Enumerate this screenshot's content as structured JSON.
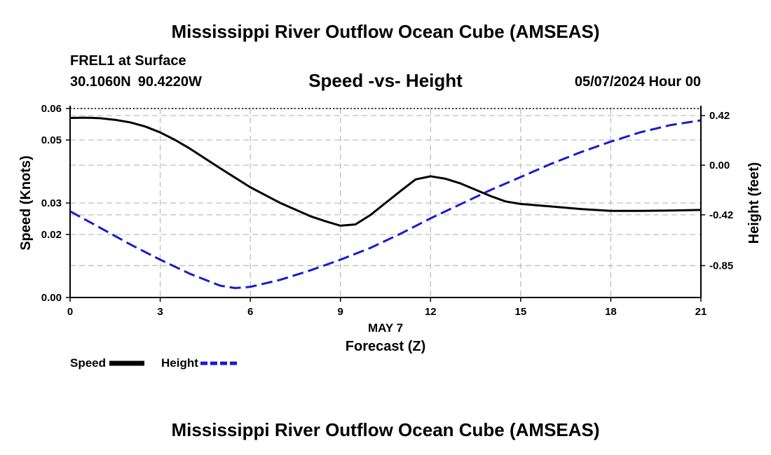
{
  "header": {
    "title": "Mississippi River Outflow Ocean Cube (AMSEAS)",
    "station": "FREL1 at Surface",
    "lat": "30.1060N",
    "lon": "90.4220W",
    "subtitle": "Speed -vs- Height",
    "date": "05/07/2024 Hour 00"
  },
  "footer": {
    "title": "Mississippi River Outflow Ocean Cube (AMSEAS)"
  },
  "colors": {
    "speed": "#000000",
    "height": "#1a1ad0",
    "grid": "#bdbdbd"
  },
  "chart_data": {
    "type": "line",
    "title": "Speed -vs- Height",
    "xlabel": "Forecast (Z)",
    "xsublabel": "MAY 7",
    "ylabel_left": "Speed (Knots)",
    "ylabel_right": "Height (feet)",
    "xlim": [
      0,
      21
    ],
    "ylim_left": [
      0,
      0.06
    ],
    "ylim_right": [
      -1.12,
      0.48
    ],
    "x_ticks": [
      0,
      3,
      6,
      9,
      12,
      15,
      18,
      21
    ],
    "x_tick_labels": [
      "0",
      "3",
      "6",
      "9",
      "12",
      "15",
      "18",
      "21"
    ],
    "left_ticks": [
      0,
      0.02,
      0.03,
      0.05,
      0.06
    ],
    "left_tick_labels": [
      "0.00",
      "0.02",
      "0.03",
      "0.05",
      "0.06"
    ],
    "right_ticks": [
      -0.85,
      -0.42,
      0.0,
      0.42
    ],
    "right_tick_labels": [
      "-0.85",
      "-0.42",
      "0.00",
      "0.42"
    ],
    "series": [
      {
        "name": "Speed",
        "axis": "left",
        "style": "solid",
        "x": [
          0,
          0.5,
          1,
          1.5,
          2,
          2.5,
          3,
          3.5,
          4,
          5,
          6,
          7,
          8,
          8.5,
          9,
          9.5,
          10,
          10.5,
          11,
          11.5,
          12,
          12.5,
          13,
          13.5,
          14,
          14.5,
          15,
          16,
          17,
          18,
          19,
          20,
          21
        ],
        "values": [
          0.057,
          0.0571,
          0.0569,
          0.0564,
          0.0556,
          0.0543,
          0.0524,
          0.05,
          0.0472,
          0.041,
          0.035,
          0.03,
          0.0258,
          0.0242,
          0.0228,
          0.0232,
          0.0262,
          0.03,
          0.0338,
          0.0375,
          0.0385,
          0.0377,
          0.0362,
          0.0342,
          0.0322,
          0.0305,
          0.0297,
          0.0289,
          0.0281,
          0.0275,
          0.0275,
          0.0276,
          0.0278
        ]
      },
      {
        "name": "Height",
        "axis": "right",
        "style": "dashed",
        "x": [
          0,
          1,
          2,
          3,
          4,
          5,
          5.5,
          6,
          7,
          8,
          9,
          10,
          11,
          12,
          13,
          14,
          15,
          16,
          17,
          18,
          19,
          20,
          21
        ],
        "values": [
          -0.39,
          -0.53,
          -0.67,
          -0.8,
          -0.92,
          -1.02,
          -1.04,
          -1.03,
          -0.97,
          -0.89,
          -0.8,
          -0.7,
          -0.58,
          -0.45,
          -0.33,
          -0.21,
          -0.1,
          0.01,
          0.11,
          0.2,
          0.28,
          0.34,
          0.38
        ]
      }
    ],
    "legend": [
      {
        "label": "Speed"
      },
      {
        "label": "Height"
      }
    ],
    "legend_position": "bottom-left"
  }
}
